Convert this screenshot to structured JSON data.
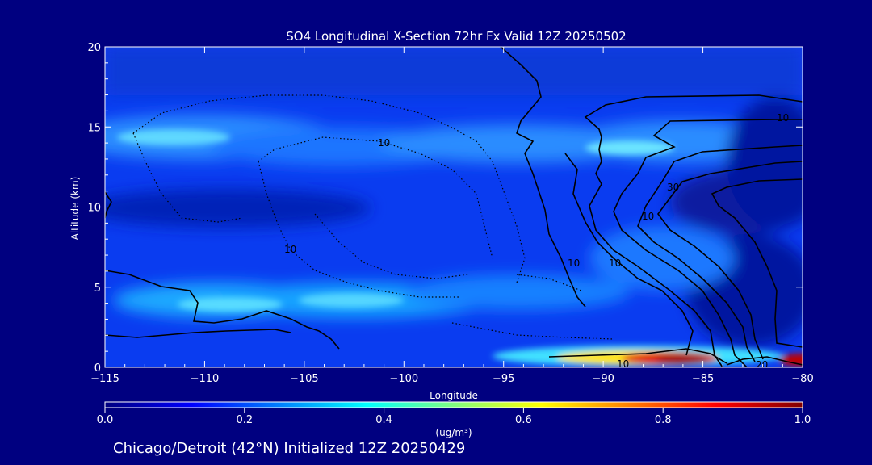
{
  "chart_data": {
    "type": "heatmap",
    "title": "SO4 Longitudinal X-Section 72hr  Fx Valid 12Z 20250502",
    "xlabel": "Longitude",
    "ylabel": "Altitude (km)",
    "xlim": [
      -115,
      -80
    ],
    "ylim": [
      0,
      20
    ],
    "x_ticks": [
      -115,
      -110,
      -105,
      -100,
      -95,
      -90,
      -85,
      -80
    ],
    "y_ticks": [
      0,
      5,
      10,
      15,
      20
    ],
    "x_tick_labels": [
      "−115",
      "−110",
      "−105",
      "−100",
      "−95",
      "−90",
      "−85",
      "−80"
    ],
    "y_tick_labels": [
      "0",
      "5",
      "10",
      "15",
      "20"
    ],
    "colorbar": {
      "min": 0.0,
      "max": 1.0,
      "ticks": [
        0.0,
        0.2,
        0.4,
        0.6,
        0.8,
        1.0
      ],
      "tick_labels": [
        "0.0",
        "0.2",
        "0.4",
        "0.6",
        "0.8",
        "1.0"
      ],
      "unit_label": "(ug/m³)",
      "colormap": [
        "#000080",
        "#0000ff",
        "#0080ff",
        "#00ffff",
        "#80ff80",
        "#ffff00",
        "#ff8000",
        "#ff0000",
        "#800000"
      ]
    },
    "field_features": [
      {
        "lon": -112.5,
        "alt": 14.0,
        "value": 0.42
      },
      {
        "lon": -107.0,
        "alt": 14.2,
        "value": 0.3
      },
      {
        "lon": -101.0,
        "alt": 13.5,
        "value": 0.28
      },
      {
        "lon": -96.0,
        "alt": 13.5,
        "value": 0.32
      },
      {
        "lon": -87.5,
        "alt": 13.5,
        "value": 0.45
      },
      {
        "lon": -110.0,
        "alt": 9.8,
        "value": 0.06
      },
      {
        "lon": -108.0,
        "alt": 4.0,
        "value": 0.45
      },
      {
        "lon": -103.0,
        "alt": 4.0,
        "value": 0.42
      },
      {
        "lon": -99.0,
        "alt": 4.2,
        "value": 0.4
      },
      {
        "lon": -89.5,
        "alt": 0.6,
        "value": 0.72
      },
      {
        "lon": -86.0,
        "alt": 0.5,
        "value": 0.95
      },
      {
        "lon": -80.5,
        "alt": 0.5,
        "value": 0.9
      }
    ],
    "contour_labels": [
      "10",
      "10",
      "10",
      "10",
      "30",
      "10",
      "10",
      "10",
      "20"
    ]
  },
  "footer": {
    "text": "Chicago/Detroit (42°N) Initialized 12Z 20250429"
  }
}
